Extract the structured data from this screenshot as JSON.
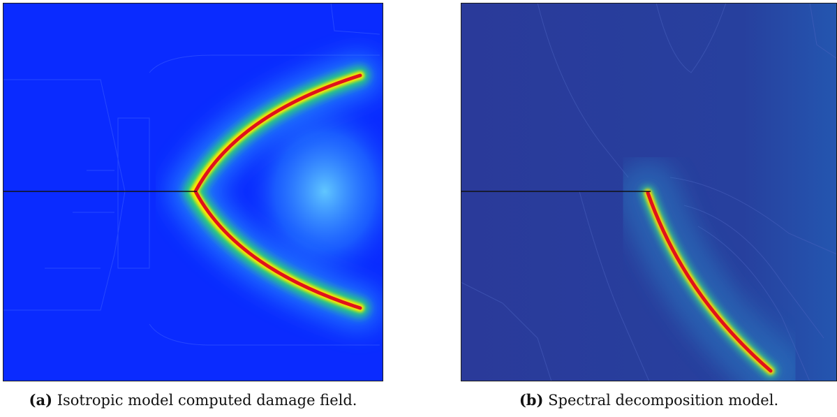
{
  "figures": [
    {
      "label": "(a)",
      "caption": "Isotropic model computed damage field.",
      "colors": {
        "background": "#0a2bff",
        "crack_core": "#e0121c",
        "crack_mid": "#ffe600",
        "crack_outer": "#29d96a",
        "halo": "#35b8ff",
        "notch": "#111111"
      }
    },
    {
      "label": "(b)",
      "caption": "Spectral decomposition model.",
      "colors": {
        "background": "#2a3a9a",
        "crack_core": "#e0121c",
        "crack_mid": "#ffd400",
        "crack_outer": "#34c58a",
        "halo": "#2a86c8",
        "notch": "#111111"
      }
    }
  ]
}
